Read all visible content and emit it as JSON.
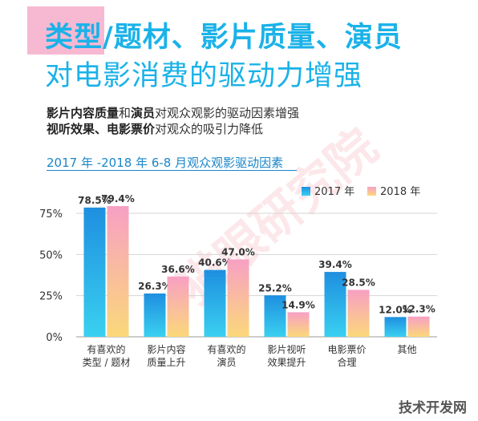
{
  "header": {
    "title_line1": "类型/题材、影片质量、演员",
    "title_line2": "对电影消费的驱动力增强"
  },
  "subtitle": {
    "line1_bold_a": "影片内容质量",
    "line1_mid": "和",
    "line1_bold_b": "演员",
    "line1_rest": "对观众观影的驱动因素增强",
    "line2_bold": "视听效果、电影票价",
    "line2_rest": "对观众的吸引力降低"
  },
  "chart_heading": "2017 年 -2018 年 6-8 月观众观影驱动因素",
  "watermark": "技术开发网",
  "watermark_diag": "猫眼研究院",
  "colors": {
    "series_2017_top": "#1e8fe0",
    "series_2017_bottom": "#3ad0f0",
    "series_2018_top": "#f7a0c4",
    "series_2018_bottom": "#fbd87a",
    "heading": "#1ab2e8"
  },
  "chart_data": {
    "type": "bar",
    "categories": [
      [
        "有喜欢的",
        "类型 / 题材"
      ],
      [
        "影片内容",
        "质量上升"
      ],
      [
        "有喜欢的",
        "演员"
      ],
      [
        "影片视听",
        "效果提升"
      ],
      [
        "电影票价",
        "合理"
      ],
      [
        "其他"
      ]
    ],
    "series": [
      {
        "name": "2017 年",
        "values": [
          78.5,
          26.3,
          40.6,
          25.2,
          39.4,
          12.0
        ],
        "labels": [
          "78.5%",
          "26.3%",
          "40.6%",
          "25.2%",
          "39.4%",
          "12.0%"
        ]
      },
      {
        "name": "2018 年",
        "values": [
          79.4,
          36.6,
          47.0,
          14.9,
          28.5,
          12.3
        ],
        "labels": [
          "79.4%",
          "36.6%",
          "47.0%",
          "14.9%",
          "28.5%",
          "12.3%"
        ]
      }
    ],
    "yticks": [
      "0%",
      "25%",
      "50%",
      "75%"
    ],
    "ytick_values": [
      0,
      25,
      50,
      75
    ],
    "ylim": [
      0,
      75
    ],
    "grid": true,
    "legend": "top-right"
  }
}
